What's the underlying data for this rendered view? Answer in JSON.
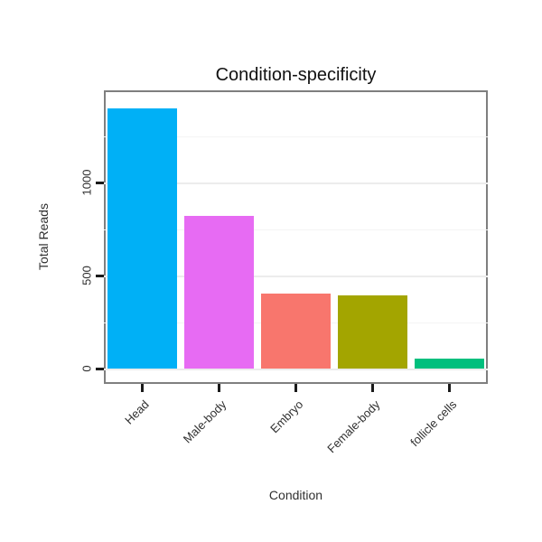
{
  "chart_data": {
    "type": "bar",
    "title": "Condition-specificity",
    "xlabel": "Condition",
    "ylabel": "Total Reads",
    "categories": [
      "Head",
      "Male-body",
      "Embryo",
      "Female-body",
      "follicle cells"
    ],
    "values": [
      1400,
      820,
      405,
      395,
      55
    ],
    "bar_colors": [
      "#00B0F6",
      "#E76BF3",
      "#F8766D",
      "#A3A500",
      "#00BF7D"
    ],
    "yticks": [
      0,
      500,
      1000
    ],
    "yticks_minor": [
      250,
      750,
      1250
    ],
    "ylim": [
      0,
      1450
    ],
    "grid": "horizontal-light",
    "legend": "none",
    "panel_border_color": "#7f7f7f",
    "tick_color": "#1a1a1a"
  }
}
